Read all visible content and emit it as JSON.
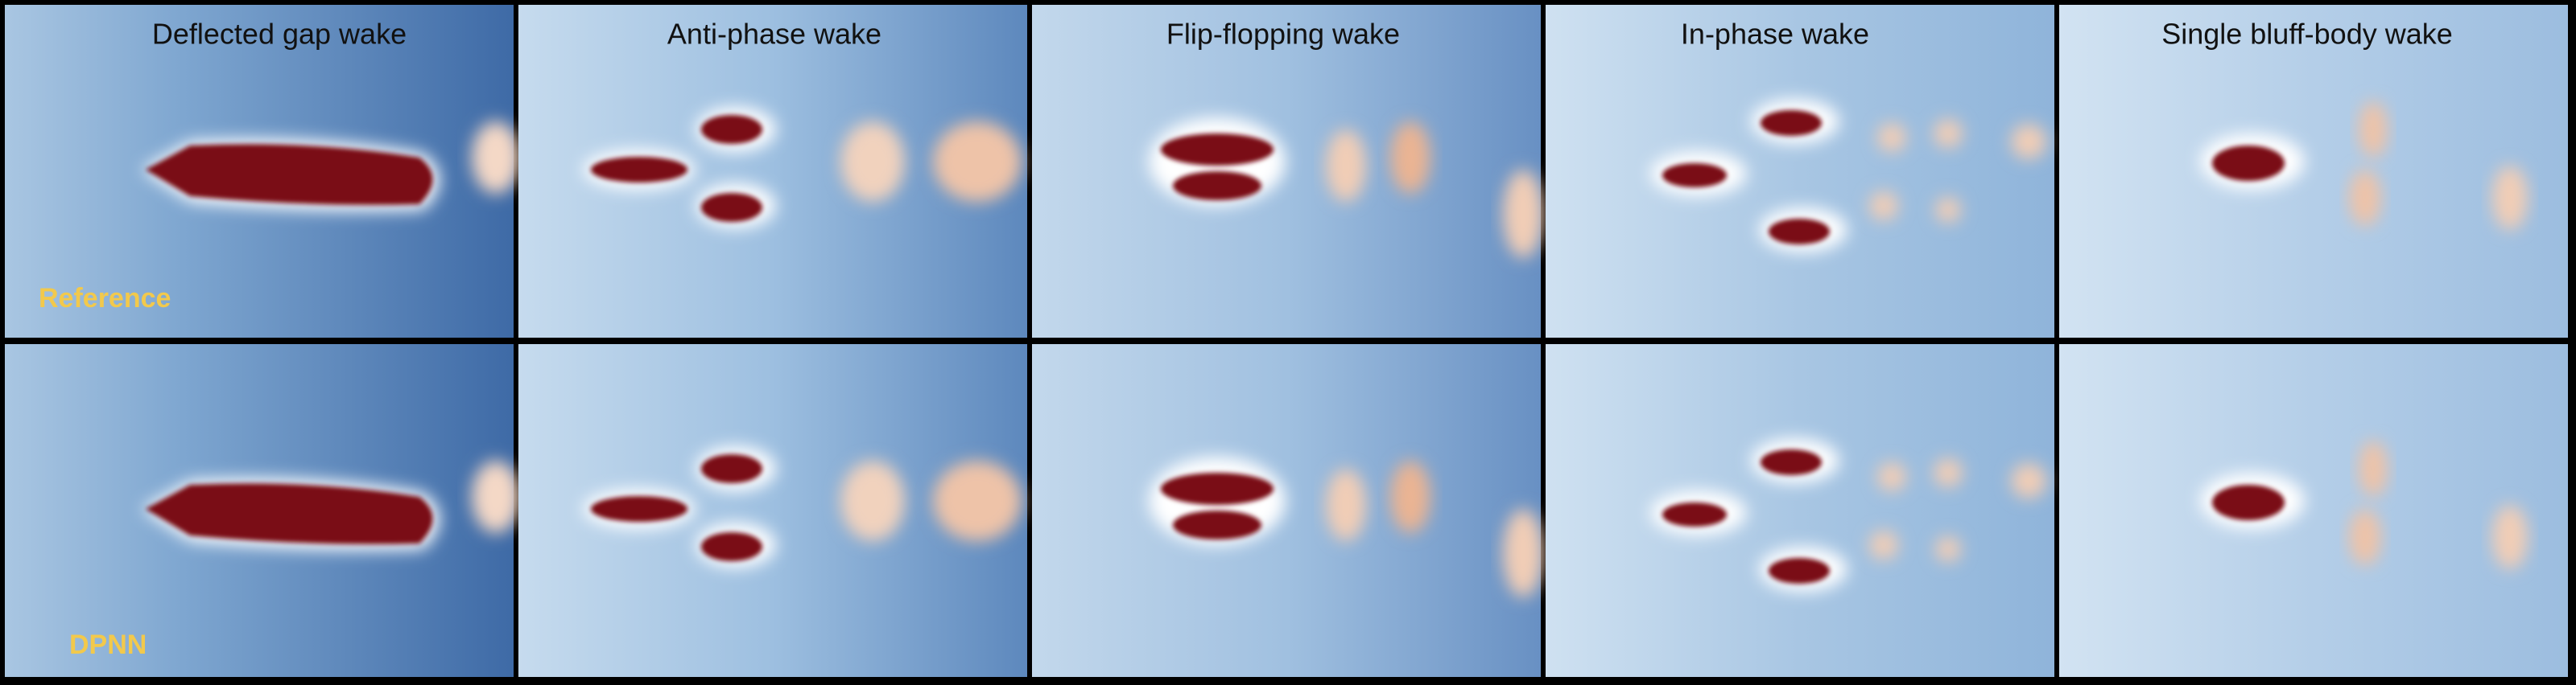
{
  "panels": [
    {
      "title": "Deflected gap wake"
    },
    {
      "title": "Anti-phase wake"
    },
    {
      "title": "Flip-flopping wake"
    },
    {
      "title": "In-phase wake"
    },
    {
      "title": "Single bluff-body wake"
    }
  ],
  "rows": [
    {
      "label": "Reference"
    },
    {
      "label": "DPNN"
    }
  ]
}
